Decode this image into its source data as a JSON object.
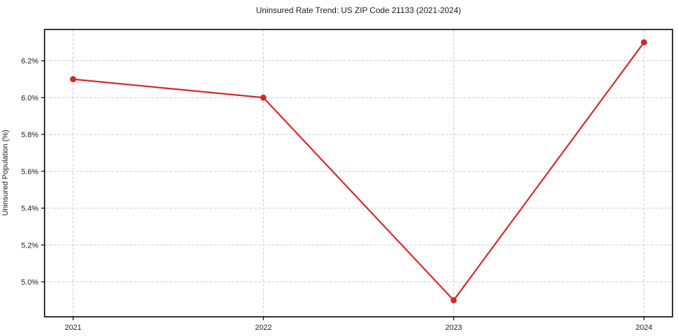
{
  "figure": {
    "background": "#ffffff"
  },
  "colors": {
    "line": "#d62728",
    "grid": "#cccccc",
    "spine": "#000000",
    "text": "#1a1a1a"
  },
  "chart_data": {
    "type": "line",
    "title": "Uninsured Rate Trend: US ZIP Code 21133 (2021-2024)",
    "xlabel": "",
    "ylabel": "Uninsured Population (%)",
    "x": [
      2021,
      2022,
      2023,
      2024
    ],
    "x_tick_labels": [
      "2021",
      "2022",
      "2023",
      "2024"
    ],
    "values": [
      6.1,
      6.0,
      4.9,
      6.3
    ],
    "y_ticks": [
      5.0,
      5.2,
      5.4,
      5.6,
      5.8,
      6.0,
      6.2
    ],
    "y_tick_labels": [
      "5.0%",
      "5.2%",
      "5.4%",
      "5.6%",
      "5.8%",
      "6.0%",
      "6.2%"
    ],
    "xlim": [
      2020.85,
      2024.15
    ],
    "ylim": [
      4.81,
      6.37
    ],
    "grid": true,
    "grid_style": "dashed",
    "legend": "none",
    "marker": "circle"
  }
}
